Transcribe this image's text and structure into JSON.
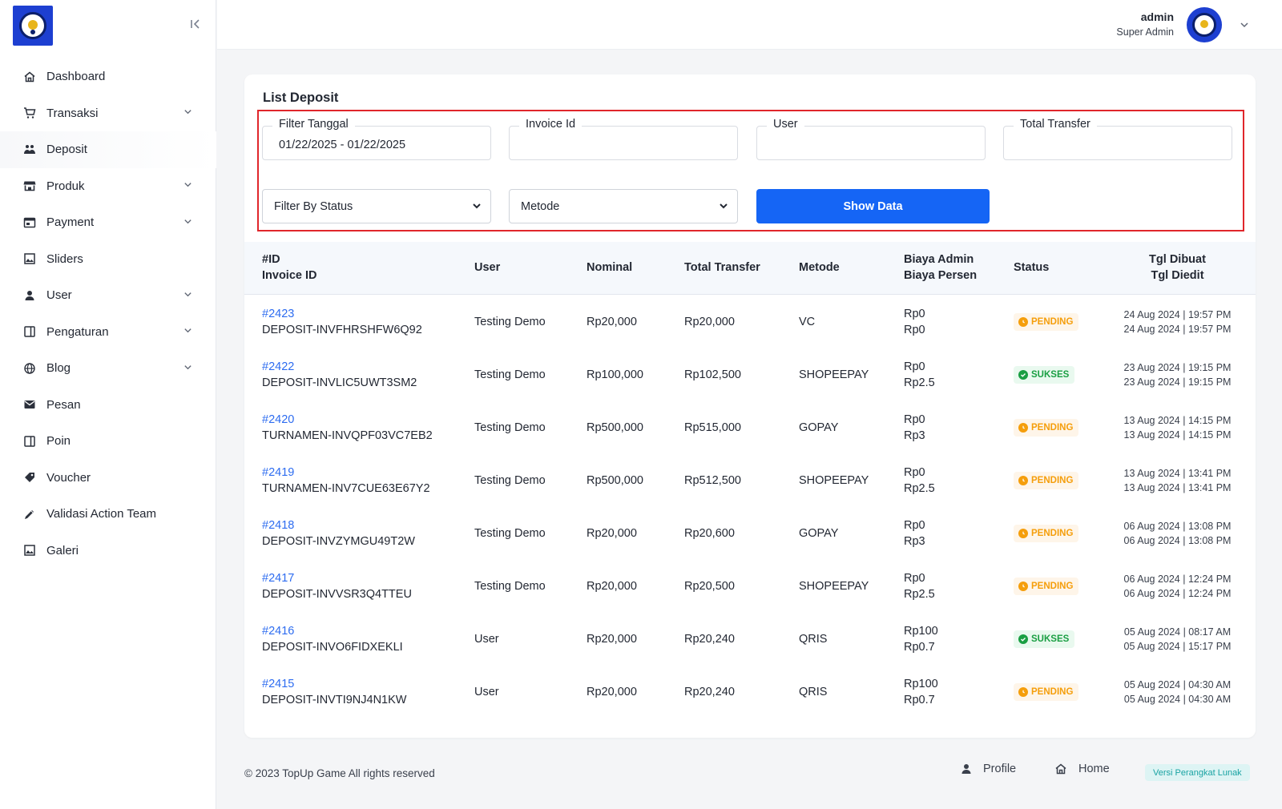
{
  "sidebar": {
    "items": [
      {
        "label": "Dashboard",
        "icon": "home-icon",
        "has_children": false
      },
      {
        "label": "Transaksi",
        "icon": "cart-icon",
        "has_children": true
      },
      {
        "label": "Deposit",
        "icon": "deposit-icon",
        "has_children": false,
        "active": true
      },
      {
        "label": "Produk",
        "icon": "store-icon",
        "has_children": true
      },
      {
        "label": "Payment",
        "icon": "wallet-icon",
        "has_children": true
      },
      {
        "label": "Sliders",
        "icon": "image-icon",
        "has_children": false
      },
      {
        "label": "User",
        "icon": "user-icon",
        "has_children": true
      },
      {
        "label": "Pengaturan",
        "icon": "settings-panel-icon",
        "has_children": true
      },
      {
        "label": "Blog",
        "icon": "globe-icon",
        "has_children": true
      },
      {
        "label": "Pesan",
        "icon": "mail-icon",
        "has_children": false
      },
      {
        "label": "Poin",
        "icon": "points-icon",
        "has_children": false
      },
      {
        "label": "Voucher",
        "icon": "tag-icon",
        "has_children": false
      },
      {
        "label": "Validasi Action Team",
        "icon": "check-pen-icon",
        "has_children": false
      },
      {
        "label": "Galeri",
        "icon": "gallery-icon",
        "has_children": false
      }
    ]
  },
  "header": {
    "user_name": "admin",
    "user_role": "Super Admin"
  },
  "card": {
    "title": "List Deposit",
    "filters": {
      "date_label": "Filter Tanggal",
      "date_value": "01/22/2025 - 01/22/2025",
      "invoice_label": "Invoice Id",
      "invoice_value": "",
      "user_label": "User",
      "user_value": "",
      "total_label": "Total Transfer",
      "total_value": "",
      "status_select": "Filter By Status",
      "method_select": "Metode",
      "show_button": "Show Data"
    },
    "columns": {
      "id": "#ID",
      "invoice": "Invoice ID",
      "user": "User",
      "nominal": "Nominal",
      "total": "Total Transfer",
      "method": "Metode",
      "admin_fee": "Biaya Admin",
      "percent_fee": "Biaya Persen",
      "status": "Status",
      "created": "Tgl Dibuat",
      "edited": "Tgl Diedit"
    },
    "rows": [
      {
        "id": "#2423",
        "invoice": "DEPOSIT-INVFHRSHFW6Q92",
        "user": "Testing Demo",
        "nominal": "Rp20,000",
        "total": "Rp20,000",
        "method": "VC",
        "admin_fee": "Rp0",
        "percent_fee": "Rp0",
        "status": "PENDING",
        "created": "24 Aug 2024 | 19:57 PM",
        "edited": "24 Aug 2024 | 19:57 PM"
      },
      {
        "id": "#2422",
        "invoice": "DEPOSIT-INVLIC5UWT3SM2",
        "user": "Testing Demo",
        "nominal": "Rp100,000",
        "total": "Rp102,500",
        "method": "SHOPEEPAY",
        "admin_fee": "Rp0",
        "percent_fee": "Rp2.5",
        "status": "SUKSES",
        "created": "23 Aug 2024 | 19:15 PM",
        "edited": "23 Aug 2024 | 19:15 PM"
      },
      {
        "id": "#2420",
        "invoice": "TURNAMEN-INVQPF03VC7EB2",
        "user": "Testing Demo",
        "nominal": "Rp500,000",
        "total": "Rp515,000",
        "method": "GOPAY",
        "admin_fee": "Rp0",
        "percent_fee": "Rp3",
        "status": "PENDING",
        "created": "13 Aug 2024 | 14:15 PM",
        "edited": "13 Aug 2024 | 14:15 PM"
      },
      {
        "id": "#2419",
        "invoice": "TURNAMEN-INV7CUE63E67Y2",
        "user": "Testing Demo",
        "nominal": "Rp500,000",
        "total": "Rp512,500",
        "method": "SHOPEEPAY",
        "admin_fee": "Rp0",
        "percent_fee": "Rp2.5",
        "status": "PENDING",
        "created": "13 Aug 2024 | 13:41 PM",
        "edited": "13 Aug 2024 | 13:41 PM"
      },
      {
        "id": "#2418",
        "invoice": "DEPOSIT-INVZYMGU49T2W",
        "user": "Testing Demo",
        "nominal": "Rp20,000",
        "total": "Rp20,600",
        "method": "GOPAY",
        "admin_fee": "Rp0",
        "percent_fee": "Rp3",
        "status": "PENDING",
        "created": "06 Aug 2024 | 13:08 PM",
        "edited": "06 Aug 2024 | 13:08 PM"
      },
      {
        "id": "#2417",
        "invoice": "DEPOSIT-INVVSR3Q4TTEU",
        "user": "Testing Demo",
        "nominal": "Rp20,000",
        "total": "Rp20,500",
        "method": "SHOPEEPAY",
        "admin_fee": "Rp0",
        "percent_fee": "Rp2.5",
        "status": "PENDING",
        "created": "06 Aug 2024 | 12:24 PM",
        "edited": "06 Aug 2024 | 12:24 PM"
      },
      {
        "id": "#2416",
        "invoice": "DEPOSIT-INVO6FIDXEKLI",
        "user": "User",
        "nominal": "Rp20,000",
        "total": "Rp20,240",
        "method": "QRIS",
        "admin_fee": "Rp100",
        "percent_fee": "Rp0.7",
        "status": "SUKSES",
        "created": "05 Aug 2024 | 08:17 AM",
        "edited": "05 Aug 2024 | 15:17 PM"
      },
      {
        "id": "#2415",
        "invoice": "DEPOSIT-INVTI9NJ4N1KW",
        "user": "User",
        "nominal": "Rp20,000",
        "total": "Rp20,240",
        "method": "QRIS",
        "admin_fee": "Rp100",
        "percent_fee": "Rp0.7",
        "status": "PENDING",
        "created": "05 Aug 2024 | 04:30 AM",
        "edited": "05 Aug 2024 | 04:30 AM"
      }
    ]
  },
  "footer": {
    "copyright": "© 2023 TopUp Game All rights reserved",
    "profile_label": "Profile",
    "home_label": "Home",
    "version_label": "Versi Perangkat Lunak"
  },
  "colors": {
    "primary": "#1565f5",
    "link": "#2d6cf0",
    "pending": "#f59e0b",
    "success": "#1a9f43",
    "highlight_border": "#e0262b"
  }
}
